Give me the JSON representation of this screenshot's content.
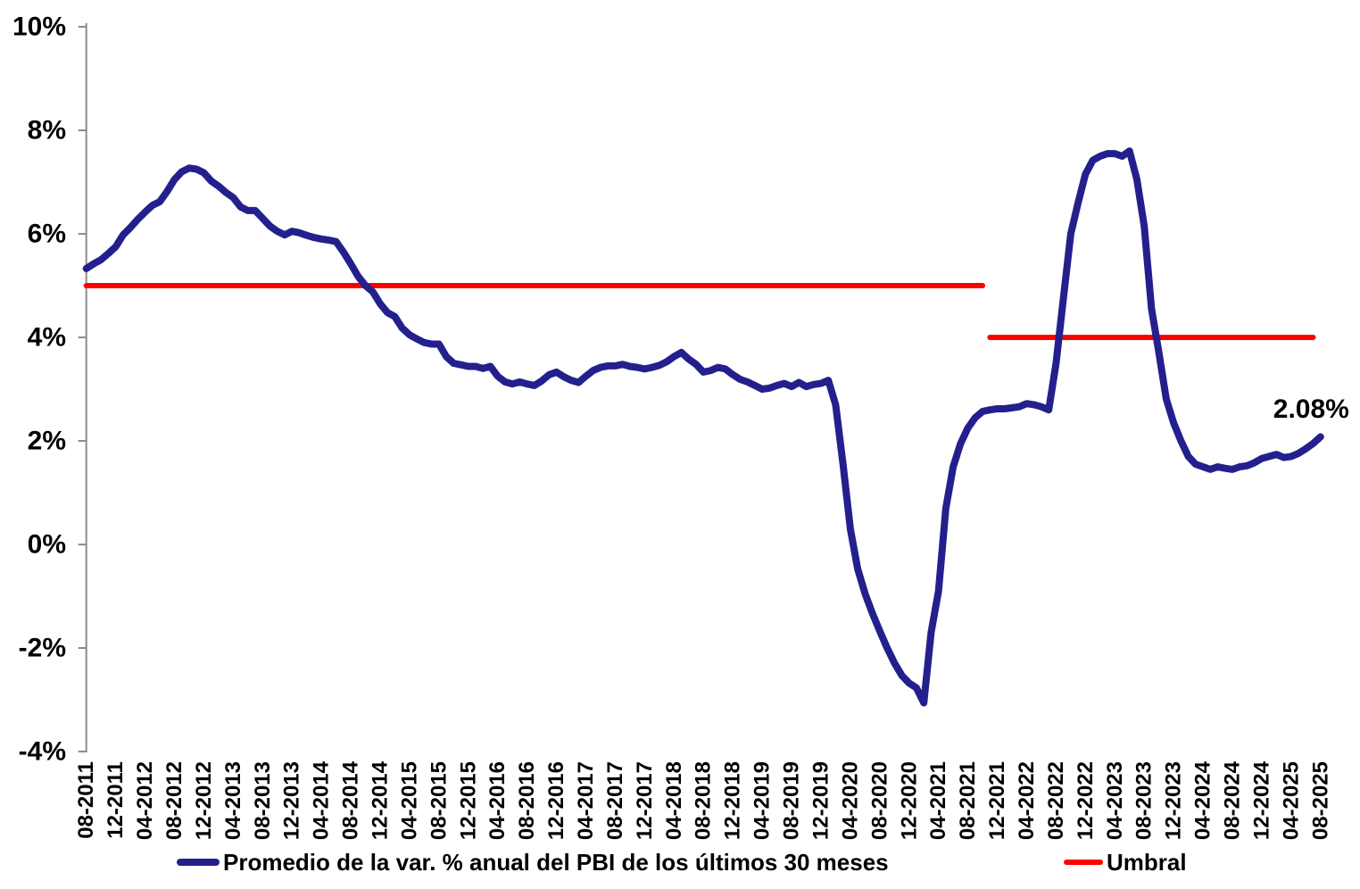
{
  "chart_data": {
    "type": "line",
    "title": "",
    "xlabel": "",
    "ylabel": "",
    "ylim": [
      -4,
      10
    ],
    "grid": false,
    "legend_position": "bottom",
    "axis_color": "#8C8C8C",
    "background": "#FFFFFF",
    "y_ticks": [
      10,
      8,
      6,
      4,
      2,
      0,
      -2,
      -4
    ],
    "y_tick_labels": [
      "10%",
      "8%",
      "6%",
      "4%",
      "2%",
      "0%",
      "-2%",
      "-4%"
    ],
    "x_tick_labels": [
      "08-2011",
      "12-2011",
      "04-2012",
      "08-2012",
      "12-2012",
      "04-2013",
      "08-2013",
      "12-2013",
      "04-2014",
      "08-2014",
      "12-2014",
      "04-2015",
      "08-2015",
      "12-2015",
      "04-2016",
      "08-2016",
      "12-2016",
      "04-2017",
      "08-2017",
      "12-2017",
      "04-2018",
      "08-2018",
      "12-2018",
      "04-2019",
      "08-2019",
      "12-2019",
      "04-2020",
      "08-2020",
      "12-2020",
      "04-2021",
      "08-2021",
      "12-2021",
      "04-2022",
      "08-2022",
      "12-2022",
      "04-2023",
      "08-2023",
      "12-2023",
      "04-2024",
      "08-2024",
      "12-2024",
      "04-2025",
      "08-2025"
    ],
    "series": [
      {
        "name": "Promedio de la var. % anual del PBI de los últimos 30 meses",
        "color": "#23208D",
        "line_width": 8,
        "frequency": "monthly",
        "start_month": "08-2011",
        "end_month": "08-2025",
        "values": [
          5.33,
          5.42,
          5.5,
          5.62,
          5.75,
          5.98,
          6.12,
          6.28,
          6.42,
          6.55,
          6.62,
          6.82,
          7.05,
          7.2,
          7.27,
          7.25,
          7.18,
          7.02,
          6.92,
          6.8,
          6.7,
          6.52,
          6.45,
          6.45,
          6.3,
          6.15,
          6.05,
          5.98,
          6.05,
          6.02,
          5.97,
          5.93,
          5.9,
          5.88,
          5.85,
          5.65,
          5.42,
          5.18,
          5.0,
          4.88,
          4.65,
          4.48,
          4.4,
          4.18,
          4.05,
          3.97,
          3.9,
          3.87,
          3.87,
          3.63,
          3.5,
          3.47,
          3.44,
          3.44,
          3.4,
          3.44,
          3.25,
          3.14,
          3.1,
          3.14,
          3.1,
          3.07,
          3.16,
          3.28,
          3.33,
          3.24,
          3.17,
          3.13,
          3.25,
          3.36,
          3.42,
          3.45,
          3.45,
          3.48,
          3.44,
          3.42,
          3.39,
          3.42,
          3.46,
          3.53,
          3.63,
          3.71,
          3.58,
          3.48,
          3.33,
          3.36,
          3.42,
          3.39,
          3.28,
          3.19,
          3.14,
          3.07,
          3.0,
          3.02,
          3.07,
          3.11,
          3.05,
          3.13,
          3.05,
          3.09,
          3.11,
          3.17,
          2.7,
          1.55,
          0.3,
          -0.47,
          -0.95,
          -1.33,
          -1.67,
          -2.0,
          -2.29,
          -2.53,
          -2.68,
          -2.77,
          -3.06,
          -1.7,
          -0.9,
          0.7,
          1.5,
          1.95,
          2.25,
          2.45,
          2.57,
          2.6,
          2.62,
          2.62,
          2.64,
          2.66,
          2.72,
          2.7,
          2.66,
          2.6,
          3.5,
          4.75,
          6.0,
          6.6,
          7.15,
          7.42,
          7.5,
          7.55,
          7.55,
          7.5,
          7.6,
          7.05,
          6.15,
          4.55,
          3.7,
          2.81,
          2.35,
          2.0,
          1.7,
          1.55,
          1.5,
          1.45,
          1.5,
          1.47,
          1.45,
          1.5,
          1.52,
          1.58,
          1.66,
          1.7,
          1.74,
          1.68,
          1.7,
          1.76,
          1.85,
          1.95,
          2.08
        ]
      },
      {
        "name": "Umbral",
        "color": "#FF0000",
        "line_width": 6,
        "segments": [
          {
            "value": 5.0,
            "from": "08-2011",
            "to": "10-2021"
          },
          {
            "value": 4.0,
            "from": "11-2021",
            "to": "07-2025"
          }
        ]
      }
    ],
    "annotation": {
      "text": "2.08%",
      "attached_to": "last_point"
    }
  }
}
